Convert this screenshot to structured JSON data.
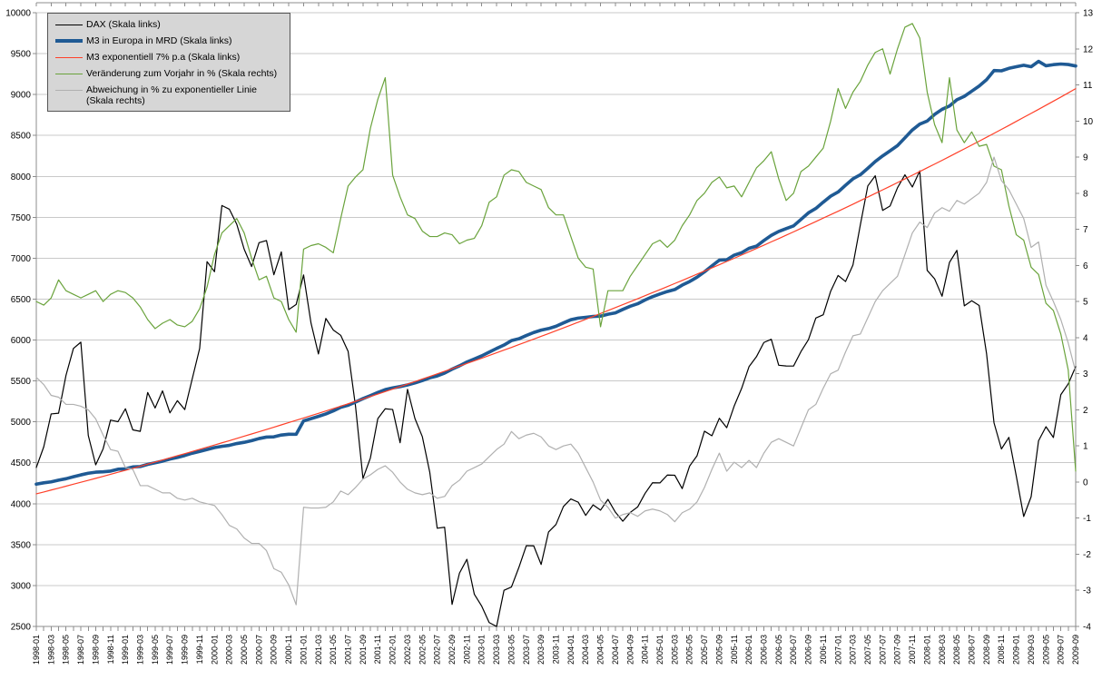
{
  "chart_data": {
    "type": "line",
    "title": "",
    "grid": "horizontal",
    "legend_position": "top-left",
    "background_color": "#ffffff",
    "gridline_color": "#c9c9c9",
    "axis_color": "#8c8c8c",
    "tick_label_color": "#000000",
    "left_axis": {
      "min": 2500,
      "max": 10000,
      "step": 500,
      "ticks": [
        10000,
        9500,
        9000,
        8500,
        8000,
        7500,
        7000,
        6500,
        6000,
        5500,
        5000,
        4500,
        4000,
        3500,
        3000,
        2500
      ]
    },
    "right_axis": {
      "min": -4,
      "max": 13,
      "step": 1,
      "ticks": [
        13,
        12,
        11,
        10,
        9,
        8,
        7,
        6,
        5,
        4,
        3,
        2,
        1,
        0,
        -1,
        -2,
        -3,
        -4
      ]
    },
    "x_label_every": 2,
    "x_categories": [
      "1998-01",
      "1998-02",
      "1998-03",
      "1998-04",
      "1998-05",
      "1998-06",
      "1998-07",
      "1998-08",
      "1998-09",
      "1998-10",
      "1998-11",
      "1998-12",
      "1999-01",
      "1999-02",
      "1999-03",
      "1999-04",
      "1999-05",
      "1999-06",
      "1999-07",
      "1999-08",
      "1999-09",
      "1999-10",
      "1999-11",
      "1999-12",
      "2000-01",
      "2000-02",
      "2000-03",
      "2000-04",
      "2000-05",
      "2000-06",
      "2000-07",
      "2000-08",
      "2000-09",
      "2000-10",
      "2000-11",
      "2000-12",
      "2001-01",
      "2001-02",
      "2001-03",
      "2001-04",
      "2001-05",
      "2001-06",
      "2001-07",
      "2001-08",
      "2001-09",
      "2001-10",
      "2001-11",
      "2001-12",
      "2002-01",
      "2002-02",
      "2002-03",
      "2002-04",
      "2002-05",
      "2002-06",
      "2002-07",
      "2002-08",
      "2002-09",
      "2002-10",
      "2002-11",
      "2002-12",
      "2003-01",
      "2003-02",
      "2003-03",
      "2003-04",
      "2003-05",
      "2003-06",
      "2003-07",
      "2003-08",
      "2003-09",
      "2003-10",
      "2003-11",
      "2003-12",
      "2004-01",
      "2004-02",
      "2004-03",
      "2004-04",
      "2004-05",
      "2004-06",
      "2004-07",
      "2004-08",
      "2004-09",
      "2004-10",
      "2004-11",
      "2004-12",
      "2005-01",
      "2005-02",
      "2005-03",
      "2005-04",
      "2005-05",
      "2005-06",
      "2005-07",
      "2005-08",
      "2005-09",
      "2005-10",
      "2005-11",
      "2005-12",
      "2006-01",
      "2006-02",
      "2006-03",
      "2006-04",
      "2006-05",
      "2006-06",
      "2006-07",
      "2006-08",
      "2006-09",
      "2006-10",
      "2006-11",
      "2006-12",
      "2007-01",
      "2007-02",
      "2007-03",
      "2007-04",
      "2007-05",
      "2007-06",
      "2007-07",
      "2007-08",
      "2007-09",
      "2007-10",
      "2007-11",
      "2007-12",
      "2008-01",
      "2008-02",
      "2008-03",
      "2008-04",
      "2008-05",
      "2008-06",
      "2008-07",
      "2008-08",
      "2008-09",
      "2008-10",
      "2008-11",
      "2008-12",
      "2009-01",
      "2009-02",
      "2009-03",
      "2009-04",
      "2009-05",
      "2009-06",
      "2009-07",
      "2009-08",
      "2009-09"
    ],
    "series": [
      {
        "name": "dax",
        "label": "DAX (Skala links)",
        "axis": "left",
        "color": "#000000",
        "width": 1.2,
        "values": [
          4442,
          4694,
          5097,
          5106,
          5569,
          5897,
          5974,
          4834,
          4475,
          4671,
          5022,
          5002,
          5160,
          4902,
          4884,
          5359,
          5170,
          5379,
          5110,
          5259,
          5150,
          5525,
          5896,
          6958,
          6835,
          7644,
          7599,
          7415,
          7110,
          6898,
          7190,
          7216,
          6798,
          7077,
          6372,
          6434,
          6795,
          6208,
          5830,
          6264,
          6123,
          6058,
          5861,
          5188,
          4308,
          4559,
          5039,
          5160,
          5151,
          4745,
          5397,
          5041,
          4818,
          4383,
          3700,
          3712,
          2769,
          3152,
          3320,
          2893,
          2747,
          2547,
          2500,
          2942,
          2982,
          3221,
          3487,
          3485,
          3257,
          3655,
          3746,
          3965,
          4058,
          4018,
          3857,
          3985,
          3921,
          4053,
          3896,
          3786,
          3893,
          3960,
          4126,
          4256,
          4254,
          4350,
          4348,
          4184,
          4460,
          4586,
          4886,
          4830,
          5044,
          4929,
          5193,
          5408,
          5674,
          5796,
          5970,
          6009,
          5692,
          5683,
          5682,
          5859,
          6004,
          6269,
          6309,
          6597,
          6789,
          6715,
          6917,
          7409,
          7883,
          8007,
          7584,
          7638,
          7861,
          8019,
          7870,
          8067,
          6851,
          6748,
          6535,
          6948,
          7096,
          6418,
          6480,
          6422,
          5831,
          4988,
          4669,
          4810,
          4338,
          3844,
          4085,
          4769,
          4941,
          4809,
          5332,
          5464,
          5675
        ]
      },
      {
        "name": "m3-europa",
        "label": "M3 in Europa in MRD (Skala links)",
        "axis": "left",
        "color": "#1f5a94",
        "width": 3.6,
        "values": [
          4239,
          4255,
          4267,
          4288,
          4305,
          4329,
          4352,
          4372,
          4385,
          4390,
          4398,
          4421,
          4426,
          4449,
          4454,
          4480,
          4500,
          4520,
          4546,
          4565,
          4589,
          4617,
          4638,
          4662,
          4686,
          4701,
          4713,
          4735,
          4750,
          4770,
          4796,
          4814,
          4817,
          4839,
          4849,
          4848,
          5012,
          5039,
          5067,
          5097,
          5134,
          5178,
          5203,
          5242,
          5284,
          5321,
          5359,
          5394,
          5415,
          5431,
          5451,
          5476,
          5505,
          5538,
          5561,
          5596,
          5644,
          5685,
          5731,
          5769,
          5807,
          5852,
          5897,
          5939,
          5993,
          6015,
          6055,
          6092,
          6121,
          6140,
          6168,
          6209,
          6248,
          6268,
          6278,
          6288,
          6292,
          6315,
          6332,
          6374,
          6413,
          6443,
          6490,
          6530,
          6563,
          6593,
          6617,
          6671,
          6715,
          6768,
          6833,
          6906,
          6976,
          6981,
          7037,
          7067,
          7121,
          7147,
          7216,
          7279,
          7327,
          7361,
          7395,
          7474,
          7554,
          7608,
          7685,
          7758,
          7809,
          7891,
          7970,
          8020,
          8099,
          8181,
          8250,
          8312,
          8376,
          8471,
          8567,
          8639,
          8676,
          8757,
          8819,
          8860,
          8936,
          8978,
          9041,
          9104,
          9182,
          9293,
          9290,
          9320,
          9340,
          9358,
          9340,
          9406,
          9352,
          9365,
          9373,
          9367,
          9349
        ]
      },
      {
        "name": "m3-exponentiell",
        "label": "M3 exponentiell 7% p.a (Skala links)",
        "axis": "left",
        "color": "#ff4029",
        "width": 1.2,
        "values": [
          4120,
          4143,
          4167,
          4190,
          4214,
          4238,
          4262,
          4286,
          4310,
          4334,
          4359,
          4384,
          4408,
          4433,
          4458,
          4484,
          4509,
          4534,
          4560,
          4586,
          4612,
          4638,
          4664,
          4690,
          4717,
          4744,
          4770,
          4797,
          4825,
          4852,
          4879,
          4907,
          4935,
          4963,
          4991,
          5019,
          5047,
          5076,
          5104,
          5133,
          5162,
          5191,
          5221,
          5250,
          5280,
          5310,
          5340,
          5370,
          5400,
          5431,
          5462,
          5492,
          5524,
          5555,
          5586,
          5618,
          5650,
          5682,
          5714,
          5746,
          5778,
          5811,
          5844,
          5877,
          5910,
          5944,
          5977,
          6011,
          6045,
          6079,
          6113,
          6148,
          6183,
          6218,
          6253,
          6288,
          6324,
          6360,
          6396,
          6432,
          6468,
          6505,
          6542,
          6579,
          6616,
          6653,
          6691,
          6728,
          6766,
          6805,
          6843,
          6882,
          6921,
          6960,
          6999,
          7039,
          7079,
          7119,
          7159,
          7200,
          7240,
          7281,
          7322,
          7364,
          7406,
          7448,
          7490,
          7532,
          7574,
          7617,
          7660,
          7704,
          7747,
          7791,
          7835,
          7879,
          7924,
          7969,
          8014,
          8059,
          8105,
          8150,
          8196,
          8242,
          8289,
          8336,
          8383,
          8430,
          8478,
          8526,
          8574,
          8622,
          8672,
          8721,
          8770,
          8819,
          8869,
          8919,
          8969,
          9020,
          9072
        ]
      },
      {
        "name": "veraenderung-vorjahr",
        "label": "Veränderung zum Vorjahr in % (Skala rechts)",
        "axis": "right",
        "color": "#6aa33c",
        "width": 1.2,
        "values": [
          5.0,
          4.9,
          5.1,
          5.6,
          5.3,
          5.2,
          5.1,
          5.2,
          5.3,
          5.0,
          5.2,
          5.3,
          5.25,
          5.1,
          4.85,
          4.5,
          4.25,
          4.4,
          4.5,
          4.35,
          4.3,
          4.45,
          4.8,
          5.4,
          6.3,
          6.9,
          7.1,
          7.3,
          6.9,
          6.2,
          5.6,
          5.7,
          5.1,
          5.0,
          4.5,
          4.15,
          6.45,
          6.55,
          6.6,
          6.5,
          6.35,
          7.3,
          8.2,
          8.45,
          8.65,
          9.8,
          10.6,
          11.2,
          8.5,
          7.9,
          7.4,
          7.3,
          6.95,
          6.8,
          6.8,
          6.9,
          6.85,
          6.6,
          6.7,
          6.75,
          7.1,
          7.75,
          7.9,
          8.5,
          8.65,
          8.6,
          8.3,
          8.2,
          8.1,
          7.6,
          7.4,
          7.4,
          6.8,
          6.2,
          5.95,
          5.9,
          4.3,
          5.3,
          5.3,
          5.3,
          5.7,
          6.0,
          6.3,
          6.6,
          6.7,
          6.5,
          6.7,
          7.1,
          7.4,
          7.8,
          8.0,
          8.3,
          8.45,
          8.15,
          8.2,
          7.9,
          8.3,
          8.7,
          8.9,
          9.15,
          8.4,
          7.8,
          8.0,
          8.6,
          8.75,
          9.0,
          9.25,
          10.0,
          10.9,
          10.35,
          10.8,
          11.1,
          11.55,
          11.9,
          12.0,
          11.3,
          12.0,
          12.6,
          12.7,
          12.3,
          10.8,
          9.9,
          9.4,
          11.2,
          9.75,
          9.4,
          9.7,
          9.3,
          9.35,
          8.75,
          8.65,
          7.65,
          6.85,
          6.7,
          5.95,
          5.75,
          4.95,
          4.75,
          4.1,
          3.1,
          0.3
        ]
      },
      {
        "name": "abweichung-exponentiell",
        "label": "Abweichung in % zu exponentieller Linie (Skala rechts)",
        "axis": "right",
        "color": "#b0b0b0",
        "width": 1.2,
        "values": [
          2.9,
          2.7,
          2.4,
          2.35,
          2.15,
          2.15,
          2.1,
          2.0,
          1.75,
          1.3,
          0.9,
          0.85,
          0.4,
          0.35,
          -0.1,
          -0.1,
          -0.2,
          -0.3,
          -0.3,
          -0.45,
          -0.5,
          -0.45,
          -0.55,
          -0.6,
          -0.65,
          -0.9,
          -1.2,
          -1.3,
          -1.55,
          -1.7,
          -1.7,
          -1.9,
          -2.4,
          -2.5,
          -2.85,
          -3.4,
          -0.7,
          -0.72,
          -0.72,
          -0.7,
          -0.55,
          -0.25,
          -0.35,
          -0.15,
          0.08,
          0.2,
          0.35,
          0.45,
          0.27,
          0.0,
          -0.2,
          -0.3,
          -0.35,
          -0.3,
          -0.45,
          -0.4,
          -0.1,
          0.05,
          0.3,
          0.4,
          0.5,
          0.7,
          0.9,
          1.05,
          1.4,
          1.2,
          1.3,
          1.35,
          1.25,
          1.0,
          0.9,
          1.0,
          1.05,
          0.8,
          0.4,
          0.0,
          -0.5,
          -0.7,
          -1.0,
          -0.9,
          -0.85,
          -0.95,
          -0.8,
          -0.75,
          -0.8,
          -0.9,
          -1.1,
          -0.85,
          -0.75,
          -0.55,
          -0.15,
          0.35,
          0.8,
          0.3,
          0.55,
          0.4,
          0.6,
          0.4,
          0.8,
          1.1,
          1.2,
          1.1,
          1.0,
          1.5,
          2.0,
          2.15,
          2.6,
          3.0,
          3.1,
          3.6,
          4.05,
          4.1,
          4.55,
          5.0,
          5.3,
          5.5,
          5.7,
          6.3,
          6.9,
          7.2,
          7.05,
          7.45,
          7.6,
          7.5,
          7.8,
          7.7,
          7.85,
          8.0,
          8.3,
          9.0,
          8.35,
          8.1,
          7.7,
          7.3,
          6.5,
          6.65,
          5.45,
          5.0,
          4.5,
          3.85,
          3.05
        ]
      }
    ]
  }
}
